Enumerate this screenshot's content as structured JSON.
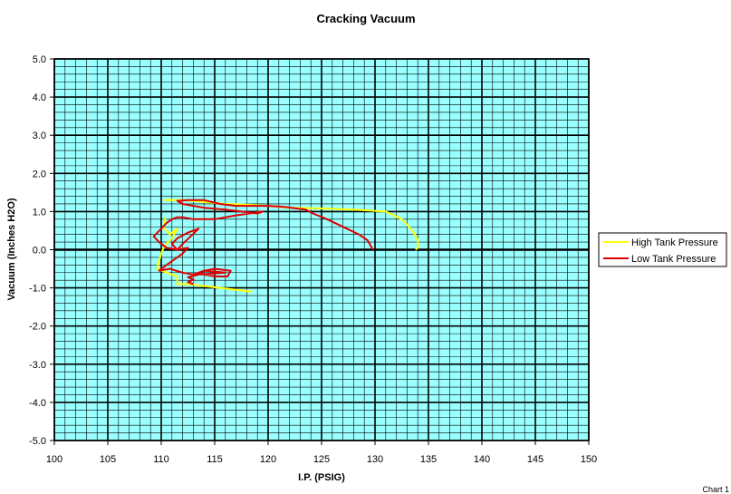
{
  "chart_data": {
    "type": "line",
    "title": "Cracking Vacuum",
    "xlabel": "I.P. (PSIG)",
    "ylabel": "Vacuum (Inches H2O)",
    "xlim": [
      100,
      150
    ],
    "ylim": [
      -5.0,
      5.0
    ],
    "x_ticks": [
      "100",
      "105",
      "110",
      "115",
      "120",
      "125",
      "130",
      "135",
      "140",
      "145",
      "150"
    ],
    "y_ticks": [
      "5.0",
      "4.0",
      "3.0",
      "2.0",
      "1.0",
      "0.0",
      "-1.0",
      "-2.0",
      "-3.0",
      "-4.0",
      "-5.0"
    ],
    "grid": true,
    "plot_background": "#99ffff",
    "legend_position": "right",
    "series": [
      {
        "name": "High Tank Pressure",
        "color": "#ffff00",
        "x": [
          110.2,
          112,
          114,
          116,
          118,
          120,
          122,
          125,
          128,
          131,
          132.5,
          133.5,
          134,
          134,
          133.8
        ],
        "y": [
          1.3,
          1.3,
          1.25,
          1.2,
          1.18,
          1.15,
          1.1,
          1.08,
          1.05,
          1.0,
          0.8,
          0.5,
          0.25,
          0.05,
          0.0
        ],
        "x2": [
          110.4,
          110.2,
          110.8,
          111.5,
          111,
          110.3,
          110,
          109.6,
          110.5,
          111.5,
          111.5,
          112.5,
          114,
          115.5,
          117,
          118.5
        ],
        "y2": [
          0.85,
          0.6,
          0.4,
          0.55,
          0.3,
          0.1,
          -0.1,
          -0.5,
          -0.6,
          -0.7,
          -0.9,
          -0.9,
          -0.95,
          -1.0,
          -1.05,
          -1.1
        ]
      },
      {
        "name": "Low Tank Pressure",
        "color": "#dd0000",
        "x": [
          129.8,
          129.6,
          129.3,
          128.5,
          127,
          125.5,
          124.2,
          123.5,
          121.5,
          120,
          118.5,
          117,
          115.5,
          114,
          112.5,
          111.5,
          112,
          114,
          116,
          117.5,
          119,
          119.5,
          117,
          115,
          113,
          112,
          111.5,
          111,
          110.5,
          110,
          109.3,
          109.8,
          110.5,
          111.5,
          112,
          113.5,
          112.5,
          111.5,
          111,
          111.5,
          112.5,
          112,
          110.5,
          109.8,
          110.8,
          112,
          113,
          114,
          115,
          116.5,
          116.2,
          115,
          114,
          113.5,
          114.2,
          116,
          115,
          113.5,
          112.5,
          113,
          112.5,
          113
        ],
        "y": [
          0.0,
          0.1,
          0.25,
          0.4,
          0.6,
          0.8,
          0.95,
          1.05,
          1.12,
          1.15,
          1.15,
          1.15,
          1.2,
          1.3,
          1.3,
          1.28,
          1.2,
          1.1,
          1.05,
          1.0,
          0.95,
          1.0,
          0.9,
          0.8,
          0.8,
          0.85,
          0.85,
          0.8,
          0.7,
          0.55,
          0.35,
          0.2,
          0.05,
          0.0,
          0.15,
          0.55,
          0.45,
          0.3,
          0.15,
          0.0,
          0.05,
          -0.1,
          -0.4,
          -0.55,
          -0.5,
          -0.6,
          -0.65,
          -0.55,
          -0.5,
          -0.55,
          -0.7,
          -0.7,
          -0.65,
          -0.6,
          -0.55,
          -0.6,
          -0.62,
          -0.65,
          -0.72,
          -0.78,
          -0.85,
          -0.9
        ]
      }
    ]
  },
  "footer_text": "Chart 1"
}
